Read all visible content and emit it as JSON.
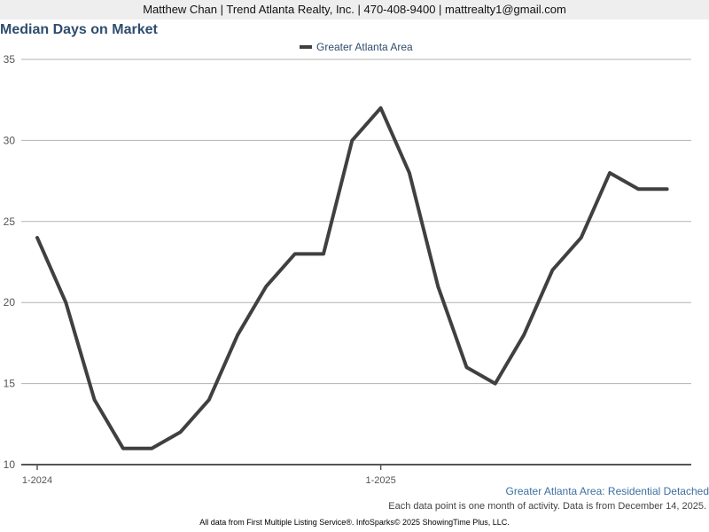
{
  "header": {
    "contact_line": "Matthew Chan | Trend Atlanta Realty, Inc. | 470-408-9400 | mattrealty1@gmail.com"
  },
  "footer": {
    "series_description": "Greater Atlanta Area: Residential Detached",
    "activity_note": "Each data point is one month of activity. Data is from December 14, 2025.",
    "source_line": "All data from First Multiple Listing Service®. InfoSparks© 2025 ShowingTime Plus, LLC."
  },
  "chart_data": {
    "type": "line",
    "title": "Median Days on Market",
    "xlabel": "",
    "ylabel": "",
    "x": [
      "2024-01",
      "2024-02",
      "2024-03",
      "2024-04",
      "2024-05",
      "2024-06",
      "2024-07",
      "2024-08",
      "2024-09",
      "2024-10",
      "2024-11",
      "2024-12",
      "2025-01",
      "2025-02",
      "2025-03",
      "2025-04",
      "2025-05",
      "2025-06",
      "2025-07",
      "2025-08",
      "2025-09",
      "2025-10",
      "2025-11"
    ],
    "x_tick_labels": [
      {
        "x": "2024-01",
        "label": "1-2024"
      },
      {
        "x": "2025-01",
        "label": "1-2025"
      }
    ],
    "y_ticks": [
      10,
      15,
      20,
      25,
      30,
      35
    ],
    "ylim": [
      10,
      35
    ],
    "grid": true,
    "legend_position": "top-center",
    "series": [
      {
        "name": "Greater Atlanta Area",
        "color": "#404040",
        "values": [
          24,
          20,
          14,
          11,
          11,
          12,
          14,
          18,
          21,
          23,
          23,
          30,
          32,
          28,
          21,
          16,
          15,
          18,
          22,
          24,
          28,
          27,
          27
        ]
      }
    ]
  }
}
